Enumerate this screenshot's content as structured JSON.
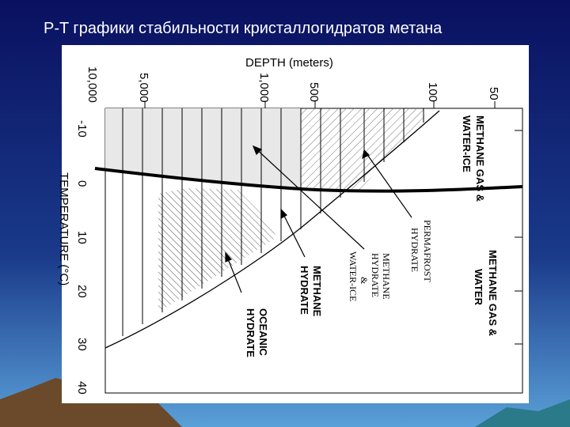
{
  "title": "P-T графики стабильности кристаллогидратов метана",
  "depth_axis": {
    "label": "DEPTH (meters)",
    "ticks": [
      "10,000",
      "5,000",
      "1,000",
      "500",
      "100",
      "50"
    ]
  },
  "temperature_axis": {
    "label": "TEMPERATURE (°C)",
    "ticks": [
      "-10",
      "0",
      "10",
      "20",
      "30",
      "40"
    ]
  },
  "regions": {
    "gas_ice": [
      "METHANE GAS &",
      "WATER-ICE"
    ],
    "permafrost": [
      "PERMAFROST",
      "HYDRATE"
    ],
    "hydrate_ice": [
      "METHANE",
      "HYDRATE",
      "&",
      "WATER-ICE"
    ],
    "gas_water": [
      "METHANE GAS &",
      "WATER"
    ],
    "hydrate": [
      "METHANE",
      "HYDRATE"
    ],
    "oceanic": [
      "OCEANIC",
      "HYDRATE"
    ]
  }
}
